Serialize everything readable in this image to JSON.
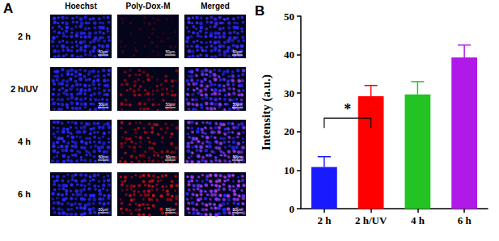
{
  "chart_data": {
    "type": "bar",
    "title": "B",
    "categories": [
      "2 h",
      "2 h/UV",
      "4 h",
      "6 h"
    ],
    "values": [
      10.8,
      29.2,
      29.7,
      39.3
    ],
    "errors": [
      2.7,
      2.8,
      3.3,
      3.2
    ],
    "colors": [
      "#1a1aff",
      "#ff0000",
      "#22c322",
      "#b01ae8"
    ],
    "y_label": "Intensity (a.u.)",
    "ylim": [
      0,
      50
    ],
    "yticks": [
      0,
      10,
      20,
      30,
      40,
      50
    ],
    "grid": false,
    "annotations": [
      {
        "text": "*",
        "from": "2 h",
        "to": "2 h/UV"
      }
    ]
  },
  "panel_a": {
    "label": "A",
    "columns": [
      "Hoechst",
      "Poly-Dox-M",
      "Merged"
    ],
    "rows": [
      "2 h",
      "2 h/UV",
      "4 h",
      "6 h"
    ],
    "scale_bar": "50μm"
  }
}
